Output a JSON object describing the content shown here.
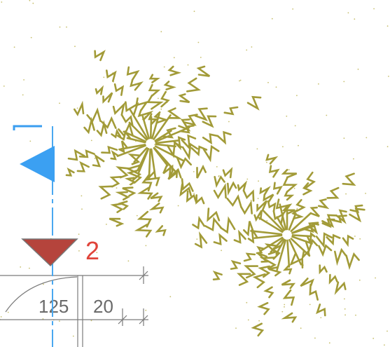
{
  "section_marker": {
    "label": "2"
  },
  "dimensions": [
    {
      "label": "125"
    },
    {
      "label": "20"
    }
  ]
}
